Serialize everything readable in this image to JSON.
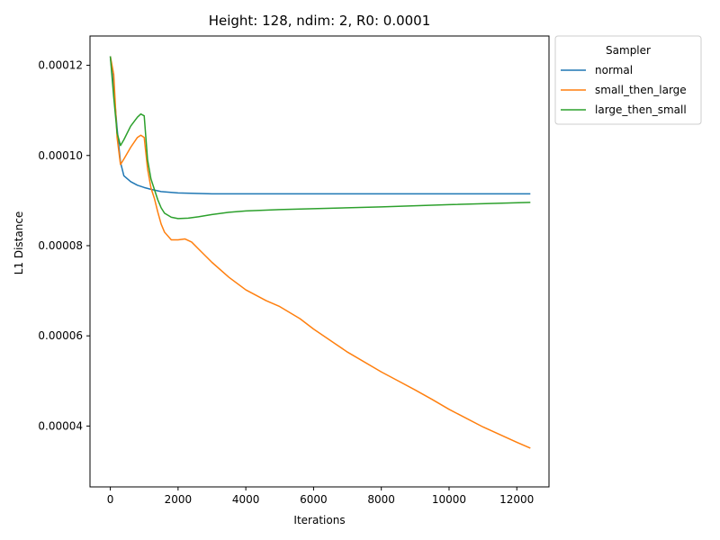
{
  "chart_data": {
    "type": "line",
    "title": "Height: 128, ndim: 2, R0: 0.0001",
    "xlabel": "Iterations",
    "ylabel": "L1 Distance",
    "xlim": [
      -600,
      12950
    ],
    "ylim": [
      2.65e-05,
      0.0001265
    ],
    "xticks": [
      0,
      2000,
      4000,
      6000,
      8000,
      10000,
      12000
    ],
    "xtick_labels": [
      "0",
      "2000",
      "4000",
      "6000",
      "8000",
      "10000",
      "12000"
    ],
    "yticks": [
      4e-05,
      6e-05,
      8e-05,
      0.0001,
      0.00012
    ],
    "ytick_labels": [
      "0.00004",
      "0.00006",
      "0.00008",
      "0.00010",
      "0.00012"
    ],
    "grid": false,
    "legend": {
      "title": "Sampler",
      "placement": "outside-top-right"
    },
    "series": [
      {
        "name": "normal",
        "color": "#1f77b4",
        "x": [
          0,
          100,
          200,
          300,
          400,
          600,
          800,
          1000,
          1200,
          1500,
          2000,
          2500,
          3000,
          4000,
          6000,
          8000,
          10000,
          12400
        ],
        "y": [
          0.000122,
          0.000115,
          0.000106,
          9.85e-05,
          9.55e-05,
          9.42e-05,
          9.34e-05,
          9.29e-05,
          9.25e-05,
          9.2e-05,
          9.17e-05,
          9.16e-05,
          9.15e-05,
          9.15e-05,
          9.15e-05,
          9.15e-05,
          9.15e-05,
          9.15e-05
        ]
      },
      {
        "name": "small_then_large",
        "color": "#ff7f0e",
        "x": [
          0,
          100,
          200,
          300,
          400,
          600,
          800,
          900,
          1000,
          1100,
          1200,
          1300,
          1400,
          1500,
          1600,
          1800,
          2000,
          2200,
          2400,
          2600,
          3000,
          3500,
          4000,
          4600,
          5000,
          5600,
          6000,
          7000,
          8000,
          8500,
          9000,
          9500,
          10000,
          11000,
          12000,
          12400
        ],
        "y": [
          0.000122,
          0.000118,
          0.000104,
          9.8e-05,
          9.92e-05,
          0.0001018,
          0.000104,
          0.0001045,
          0.000104,
          9.7e-05,
          9.28e-05,
          9.05e-05,
          8.75e-05,
          8.48e-05,
          8.3e-05,
          8.13e-05,
          8.13e-05,
          8.15e-05,
          8.08e-05,
          7.93e-05,
          7.63e-05,
          7.3e-05,
          7.02e-05,
          6.78e-05,
          6.65e-05,
          6.38e-05,
          6.15e-05,
          5.64e-05,
          5.2e-05,
          5e-05,
          4.8e-05,
          4.59e-05,
          4.37e-05,
          3.98e-05,
          3.64e-05,
          3.51e-05
        ]
      },
      {
        "name": "large_then_small",
        "color": "#2ca02c",
        "x": [
          0,
          100,
          200,
          300,
          400,
          600,
          800,
          900,
          1000,
          1100,
          1200,
          1300,
          1400,
          1500,
          1600,
          1800,
          2000,
          2300,
          2600,
          3000,
          3500,
          4000,
          5000,
          6000,
          8000,
          10000,
          12400
        ],
        "y": [
          0.000122,
          0.000113,
          0.000105,
          0.0001022,
          0.0001035,
          0.0001065,
          0.0001085,
          0.0001092,
          0.0001088,
          9.9e-05,
          9.48e-05,
          9.25e-05,
          9.02e-05,
          8.84e-05,
          8.72e-05,
          8.63e-05,
          8.6e-05,
          8.61e-05,
          8.64e-05,
          8.69e-05,
          8.74e-05,
          8.77e-05,
          8.8e-05,
          8.82e-05,
          8.86e-05,
          8.91e-05,
          8.96e-05
        ]
      }
    ]
  }
}
